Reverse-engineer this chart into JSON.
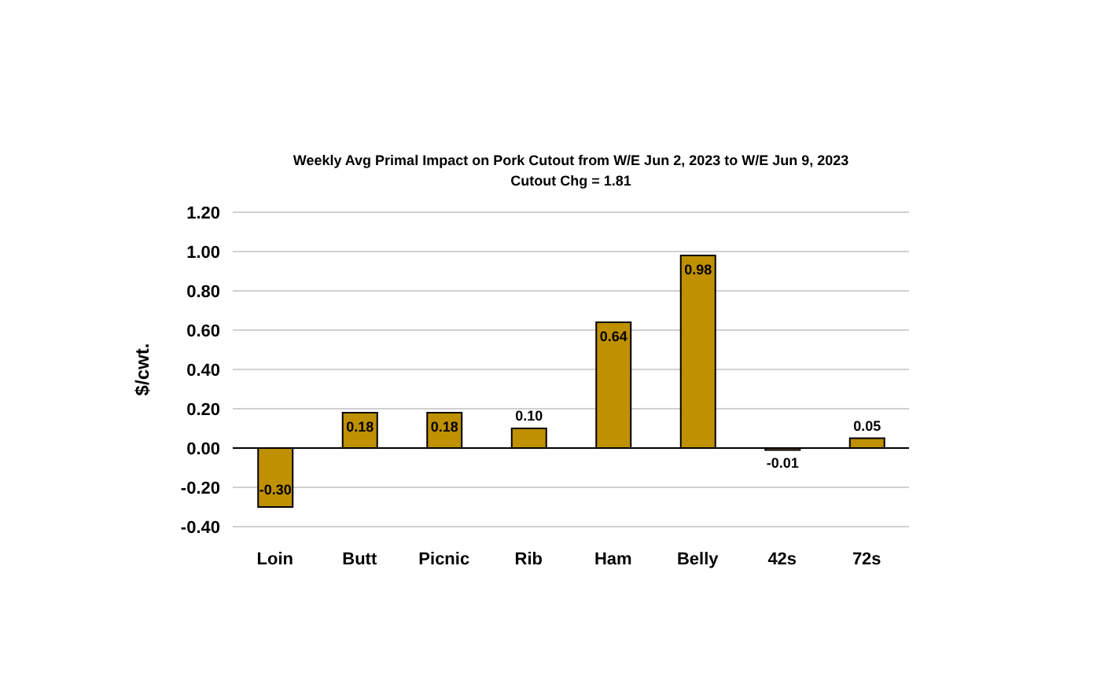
{
  "chart_data": {
    "type": "bar",
    "title": "Weekly Avg Primal Impact on Pork Cutout from W/E Jun 2, 2023 to W/E Jun 9, 2023",
    "subtitle": "Cutout Chg = 1.81",
    "ylabel": "$/cwt.",
    "categories": [
      "Loin",
      "Butt",
      "Picnic",
      "Rib",
      "Ham",
      "Belly",
      "42s",
      "72s"
    ],
    "values": [
      -0.3,
      0.18,
      0.18,
      0.1,
      0.64,
      0.98,
      -0.01,
      0.05
    ],
    "value_labels": [
      "-0.30",
      "0.18",
      "0.18",
      "0.10",
      "0.64",
      "0.98",
      "-0.01",
      "0.05"
    ],
    "color": "#bf9000",
    "ylim": [
      -0.4,
      1.2
    ],
    "yticks": [
      {
        "value": -0.4,
        "label": "-0.40"
      },
      {
        "value": -0.2,
        "label": "-0.20"
      },
      {
        "value": 0,
        "label": "0.00"
      },
      {
        "value": 0.2,
        "label": "0.20"
      },
      {
        "value": 0.4,
        "label": "0.40"
      },
      {
        "value": 0.6,
        "label": "0.60"
      },
      {
        "value": 0.8,
        "label": "0.80"
      },
      {
        "value": 1.0,
        "label": "1.00"
      },
      {
        "value": 1.2,
        "label": "1.20"
      }
    ],
    "grid": "y"
  }
}
